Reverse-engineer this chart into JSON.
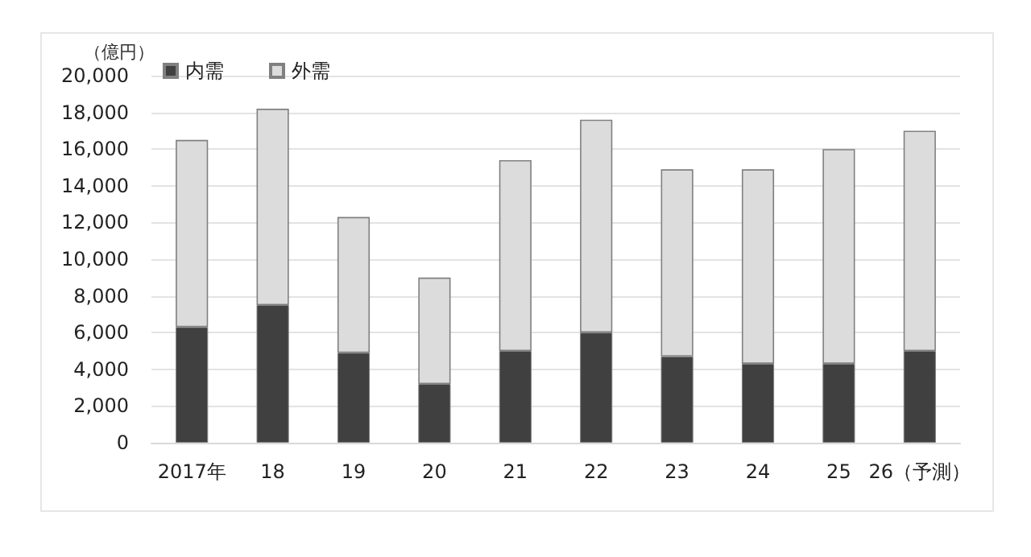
{
  "chart_data": {
    "type": "bar",
    "stacked": true,
    "ylabel": "（億円）",
    "categories": [
      "2017年",
      "18",
      "19",
      "20",
      "21",
      "22",
      "23",
      "24",
      "25",
      "26（予測）"
    ],
    "series": [
      {
        "name": "内需",
        "color": "#404040",
        "values": [
          6300,
          7500,
          4900,
          3200,
          5000,
          6000,
          4700,
          4300,
          4300,
          5000
        ]
      },
      {
        "name": "外需",
        "color": "#dcdcdc",
        "values": [
          10200,
          10700,
          7400,
          5800,
          10400,
          11600,
          10200,
          10600,
          11700,
          12000
        ]
      }
    ],
    "ylim": [
      0,
      20000
    ],
    "yticks": [
      {
        "value": 0,
        "label": "0"
      },
      {
        "value": 2000,
        "label": "2,000"
      },
      {
        "value": 4000,
        "label": "4,000"
      },
      {
        "value": 6000,
        "label": "6,000"
      },
      {
        "value": 8000,
        "label": "8,000"
      },
      {
        "value": 10000,
        "label": "10,000"
      },
      {
        "value": 12000,
        "label": "12,000"
      },
      {
        "value": 14000,
        "label": "14,000"
      },
      {
        "value": 16000,
        "label": "16,000"
      },
      {
        "value": 18000,
        "label": "18,000"
      },
      {
        "value": 20000,
        "label": "20,000"
      }
    ],
    "grid": "y",
    "legend": "top left"
  }
}
